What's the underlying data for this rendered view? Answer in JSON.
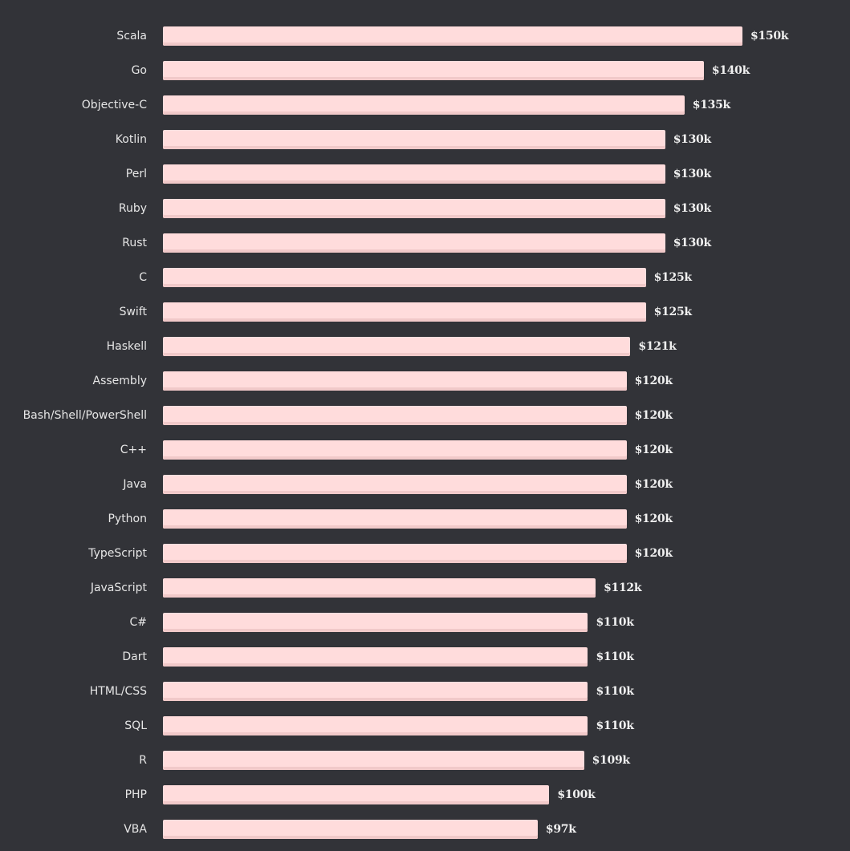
{
  "chart_data": {
    "type": "bar",
    "orientation": "horizontal",
    "categories": [
      "Scala",
      "Go",
      "Objective-C",
      "Kotlin",
      "Perl",
      "Ruby",
      "Rust",
      "C",
      "Swift",
      "Haskell",
      "Assembly",
      "Bash/Shell/PowerShell",
      "C++",
      "Java",
      "Python",
      "TypeScript",
      "JavaScript",
      "C#",
      "Dart",
      "HTML/CSS",
      "SQL",
      "R",
      "PHP",
      "VBA"
    ],
    "values": [
      150,
      140,
      135,
      130,
      130,
      130,
      130,
      125,
      125,
      121,
      120,
      120,
      120,
      120,
      120,
      120,
      112,
      110,
      110,
      110,
      110,
      109,
      100,
      97
    ],
    "data_labels": [
      "$150k",
      "$140k",
      "$135k",
      "$130k",
      "$130k",
      "$130k",
      "$130k",
      "$125k",
      "$125k",
      "$121k",
      "$120k",
      "$120k",
      "$120k",
      "$120k",
      "$120k",
      "$120k",
      "$112k",
      "$110k",
      "$110k",
      "$110k",
      "$110k",
      "$109k",
      "$100k",
      "$97k"
    ],
    "unit": "thousand USD",
    "xlim": [
      0,
      150
    ],
    "grid": false,
    "colors": {
      "background": "#323338",
      "bar": "#ffdcdc",
      "bar_shadow": "#f1c9c9",
      "text": "#e6e6e6"
    }
  }
}
